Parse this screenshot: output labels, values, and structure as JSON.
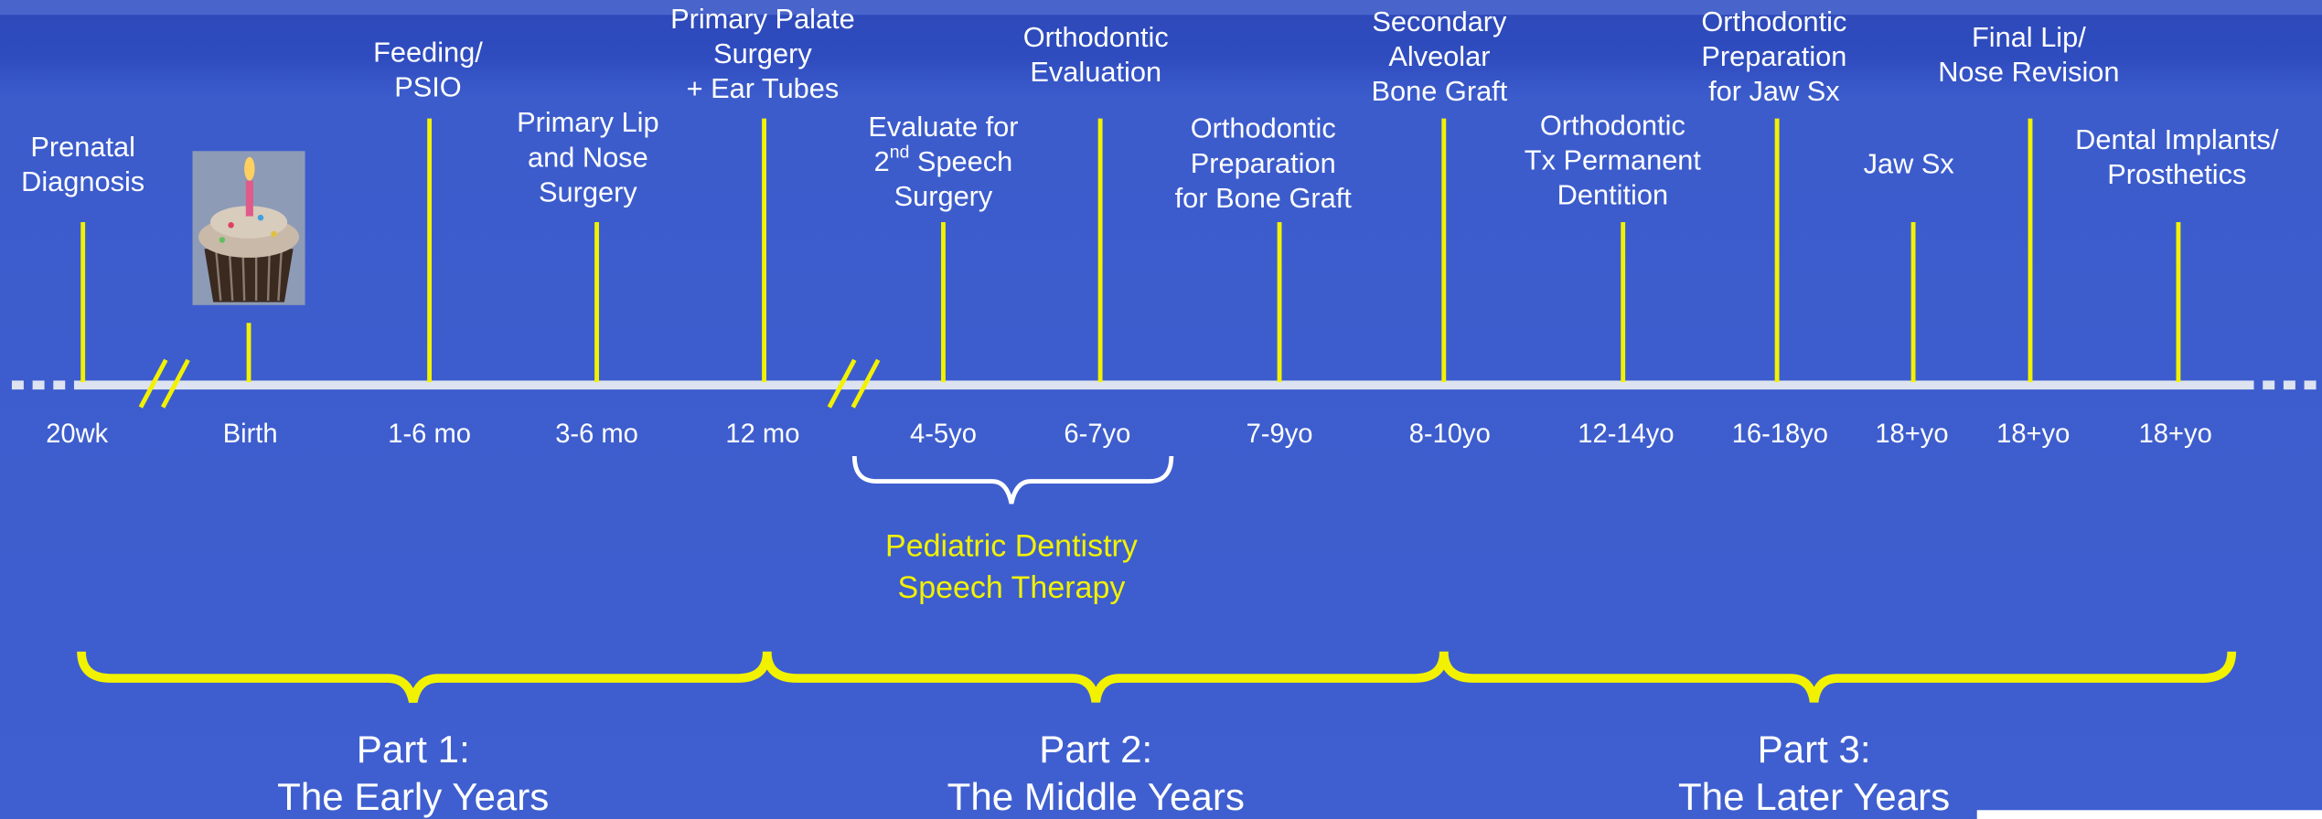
{
  "events": [
    {
      "label": [
        "Prenatal",
        "Diagnosis"
      ],
      "age": "20wk"
    },
    {
      "label": [],
      "age": "Birth"
    },
    {
      "label": [
        "Feeding/",
        "PSIO"
      ],
      "age": "1-6 mo"
    },
    {
      "label": [
        "Primary Lip",
        "and Nose",
        "Surgery"
      ],
      "age": "3-6 mo"
    },
    {
      "label": [
        "Primary Palate",
        "Surgery",
        "+ Ear Tubes"
      ],
      "age": "12 mo"
    },
    {
      "label": [
        "Evaluate for",
        {
          "text": "2",
          "superscript": "nd",
          "after": " Speech"
        },
        "Surgery"
      ],
      "age": "4-5yo"
    },
    {
      "label": [
        "Orthodontic",
        "Evaluation"
      ],
      "age": "6-7yo"
    },
    {
      "label": [
        "Orthodontic",
        "Preparation",
        "for Bone Graft"
      ],
      "age": "7-9yo"
    },
    {
      "label": [
        "Secondary",
        "Alveolar",
        "Bone Graft"
      ],
      "age": "8-10yo"
    },
    {
      "label": [
        "Orthodontic",
        "Tx Permanent",
        "Dentition"
      ],
      "age": "12-14yo"
    },
    {
      "label": [
        "Orthodontic",
        "Preparation",
        "for Jaw Sx"
      ],
      "age": "16-18yo"
    },
    {
      "label": [
        "Jaw Sx"
      ],
      "age": "18+yo"
    },
    {
      "label": [
        "Final Lip/",
        "Nose Revision"
      ],
      "age": "18+yo"
    },
    {
      "label": [
        "Dental Implants/",
        "Prosthetics"
      ],
      "age": "18+yo"
    }
  ],
  "ongoing": [
    "Pediatric Dentistry",
    "Speech Therapy"
  ],
  "parts": [
    [
      "Part 1:",
      "The Early Years"
    ],
    [
      "Part 2:",
      "The Middle Years"
    ],
    [
      "Part 3:",
      "The Later Years"
    ]
  ]
}
